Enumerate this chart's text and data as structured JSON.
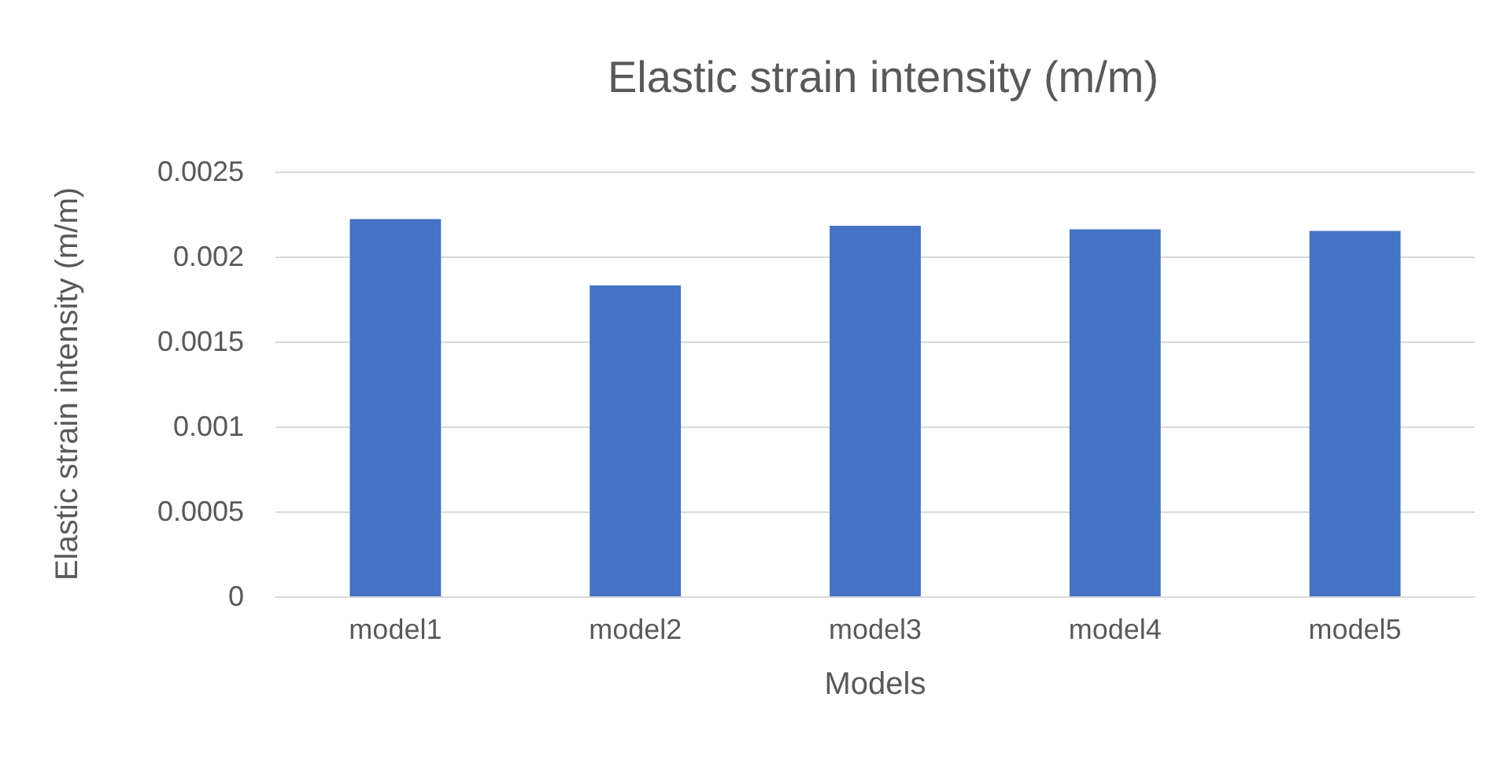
{
  "chart_data": {
    "type": "bar",
    "title": "Elastic strain intensity (m/m)",
    "xlabel": "Models",
    "ylabel": "Elastic strain intensity (m/m)",
    "categories": [
      "model1",
      "model2",
      "model3",
      "model4",
      "model5"
    ],
    "values": [
      0.00222,
      0.00183,
      0.00218,
      0.00216,
      0.00215
    ],
    "color": "#4472c4",
    "ylim": [
      0,
      0.0025
    ],
    "yticks": [
      0,
      0.0005,
      0.001,
      0.0015,
      0.002,
      0.0025
    ],
    "grid": "y"
  }
}
